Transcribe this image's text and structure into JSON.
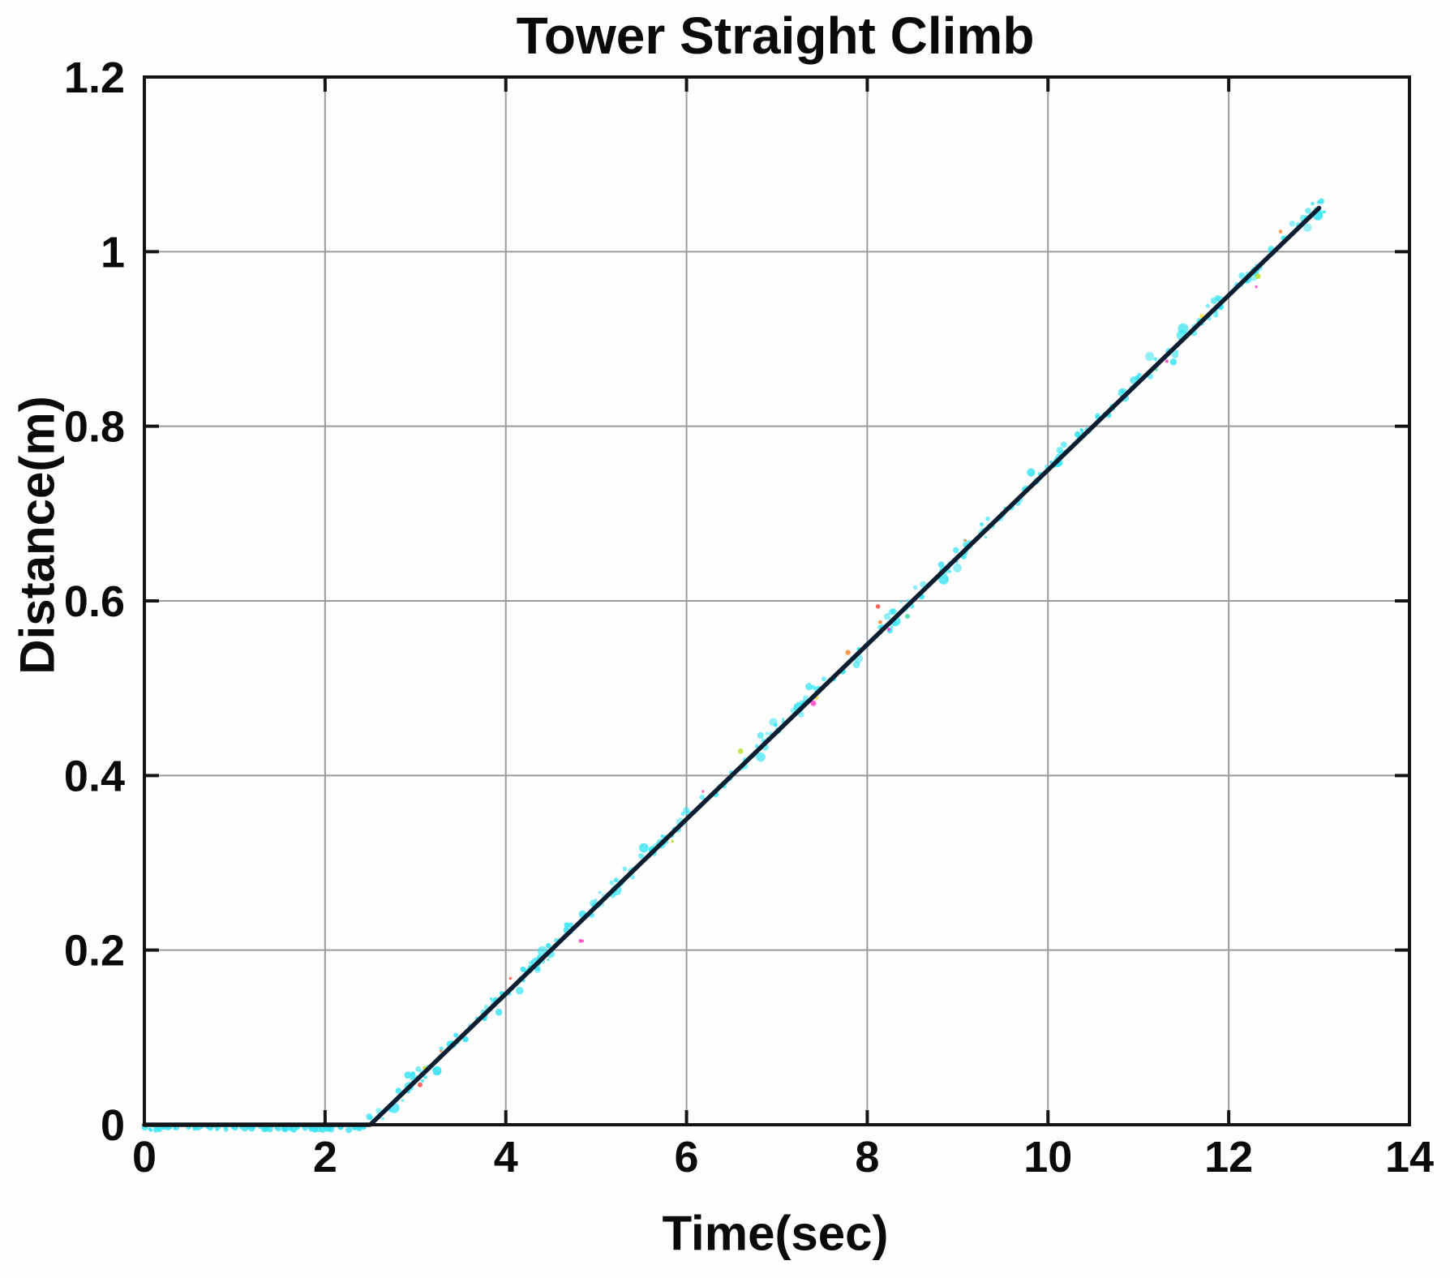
{
  "chart_data": {
    "type": "line",
    "title": "Tower Straight Climb",
    "xlabel": "Time(sec)",
    "ylabel": "Distance(m)",
    "xlim": [
      0,
      14
    ],
    "ylim": [
      0,
      1.2
    ],
    "xticks": [
      0,
      2,
      4,
      6,
      8,
      10,
      12,
      14
    ],
    "xtick_labels": [
      "0",
      "2",
      "4",
      "6",
      "8",
      "10",
      "12",
      "14"
    ],
    "yticks": [
      0,
      0.2,
      0.4,
      0.6,
      0.8,
      1,
      1.2
    ],
    "ytick_labels": [
      "0",
      "0.2",
      "0.4",
      "0.6",
      "0.8",
      "1",
      "1.2"
    ],
    "grid": true,
    "legend_position": "none",
    "series": [
      {
        "name": "distance-trajectory-line",
        "kind": "line",
        "color": "#0c1e31",
        "points": [
          [
            0,
            0
          ],
          [
            2.5,
            0
          ],
          [
            13,
            1.05
          ]
        ],
        "description": "flat at 0 m until t=2.5 s, then linear climb at 0.1 m/s reaching 1.05 m at t=13 s"
      },
      {
        "name": "measured-scatter",
        "kind": "scatter",
        "color": "#38e4f2",
        "follows": "distance-trajectory-line",
        "t_range": [
          0,
          13.05
        ]
      }
    ],
    "slope_m_per_s": 0.1,
    "climb_start_sec": 2.5,
    "end_point": [
      13,
      1.05
    ]
  },
  "style": {
    "axis_color": "#141414",
    "grid_color": "#9b9b9b",
    "background": "#fefefe",
    "line_color": "#0c1e31",
    "scatter_color": "#38e4f2",
    "noise_colors": [
      "#ff4fc3",
      "#ffd84d",
      "#ff8c3a",
      "#ff5544",
      "#bce23c",
      "#46e0a0"
    ]
  }
}
